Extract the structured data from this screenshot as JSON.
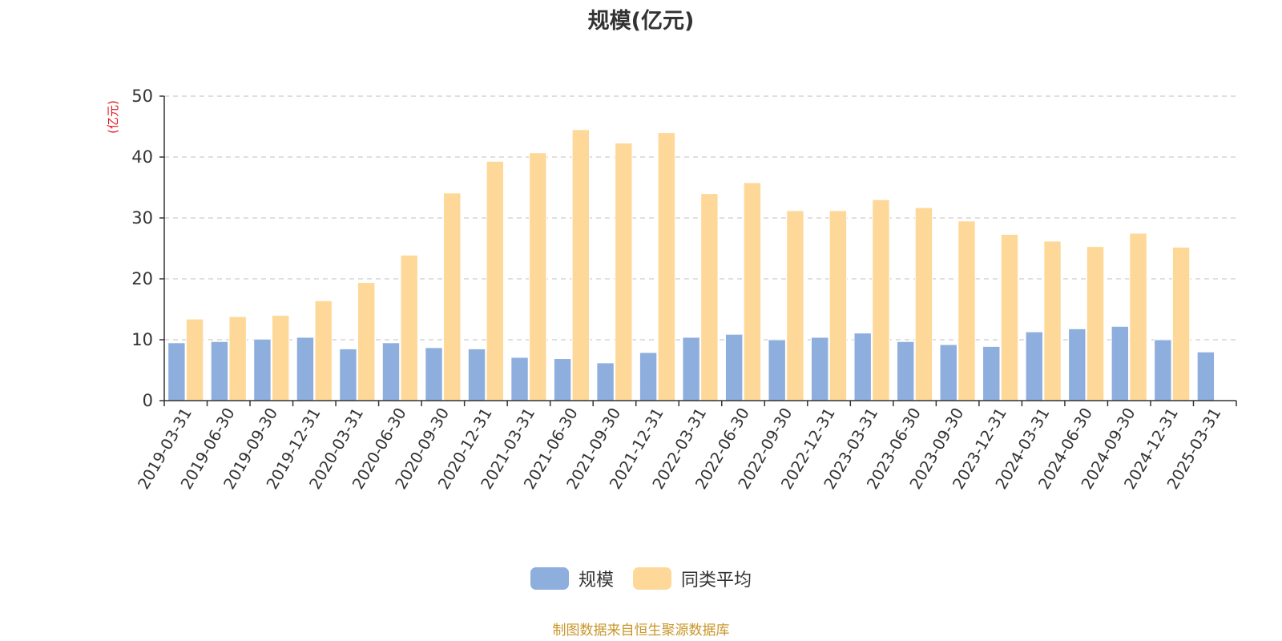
{
  "chart_data": {
    "type": "bar",
    "title": "规模(亿元)",
    "ylabel": "(亿元)",
    "xlabel": "",
    "ylim": [
      0,
      50
    ],
    "yticks": [
      0,
      10,
      20,
      30,
      40,
      50
    ],
    "grid": true,
    "legend_position": "bottom-center",
    "categories": [
      "2019-03-31",
      "2019-06-30",
      "2019-09-30",
      "2019-12-31",
      "2020-03-31",
      "2020-06-30",
      "2020-09-30",
      "2020-12-31",
      "2021-03-31",
      "2021-06-30",
      "2021-09-30",
      "2021-12-31",
      "2022-03-31",
      "2022-06-30",
      "2022-09-30",
      "2022-12-31",
      "2023-03-31",
      "2023-06-30",
      "2023-09-30",
      "2023-12-31",
      "2024-03-31",
      "2024-06-30",
      "2024-09-30",
      "2024-12-31",
      "2025-03-31"
    ],
    "series": [
      {
        "name": "规模",
        "color": "#8eaedd",
        "values": [
          9.5,
          9.7,
          10.1,
          10.4,
          8.5,
          9.5,
          8.7,
          8.5,
          7.1,
          6.9,
          6.2,
          7.9,
          10.4,
          10.9,
          10.0,
          10.4,
          11.1,
          9.7,
          9.2,
          8.9,
          11.3,
          11.8,
          12.2,
          10.0,
          8.0
        ]
      },
      {
        "name": "同类平均",
        "color": "#fed898",
        "values": [
          13.4,
          13.8,
          14.0,
          16.4,
          19.4,
          23.9,
          34.1,
          39.3,
          40.7,
          44.5,
          42.3,
          44.0,
          34.0,
          35.8,
          31.2,
          31.2,
          33.0,
          31.7,
          29.5,
          27.3,
          26.2,
          25.3,
          27.5,
          25.2,
          null
        ]
      }
    ]
  },
  "source_note": "制图数据来自恒生聚源数据库",
  "colors": {
    "title": "#333333",
    "axis": "#333333",
    "grid": "#cccccc",
    "ylabel": "#e4151b",
    "source_note": "#c8962a"
  }
}
